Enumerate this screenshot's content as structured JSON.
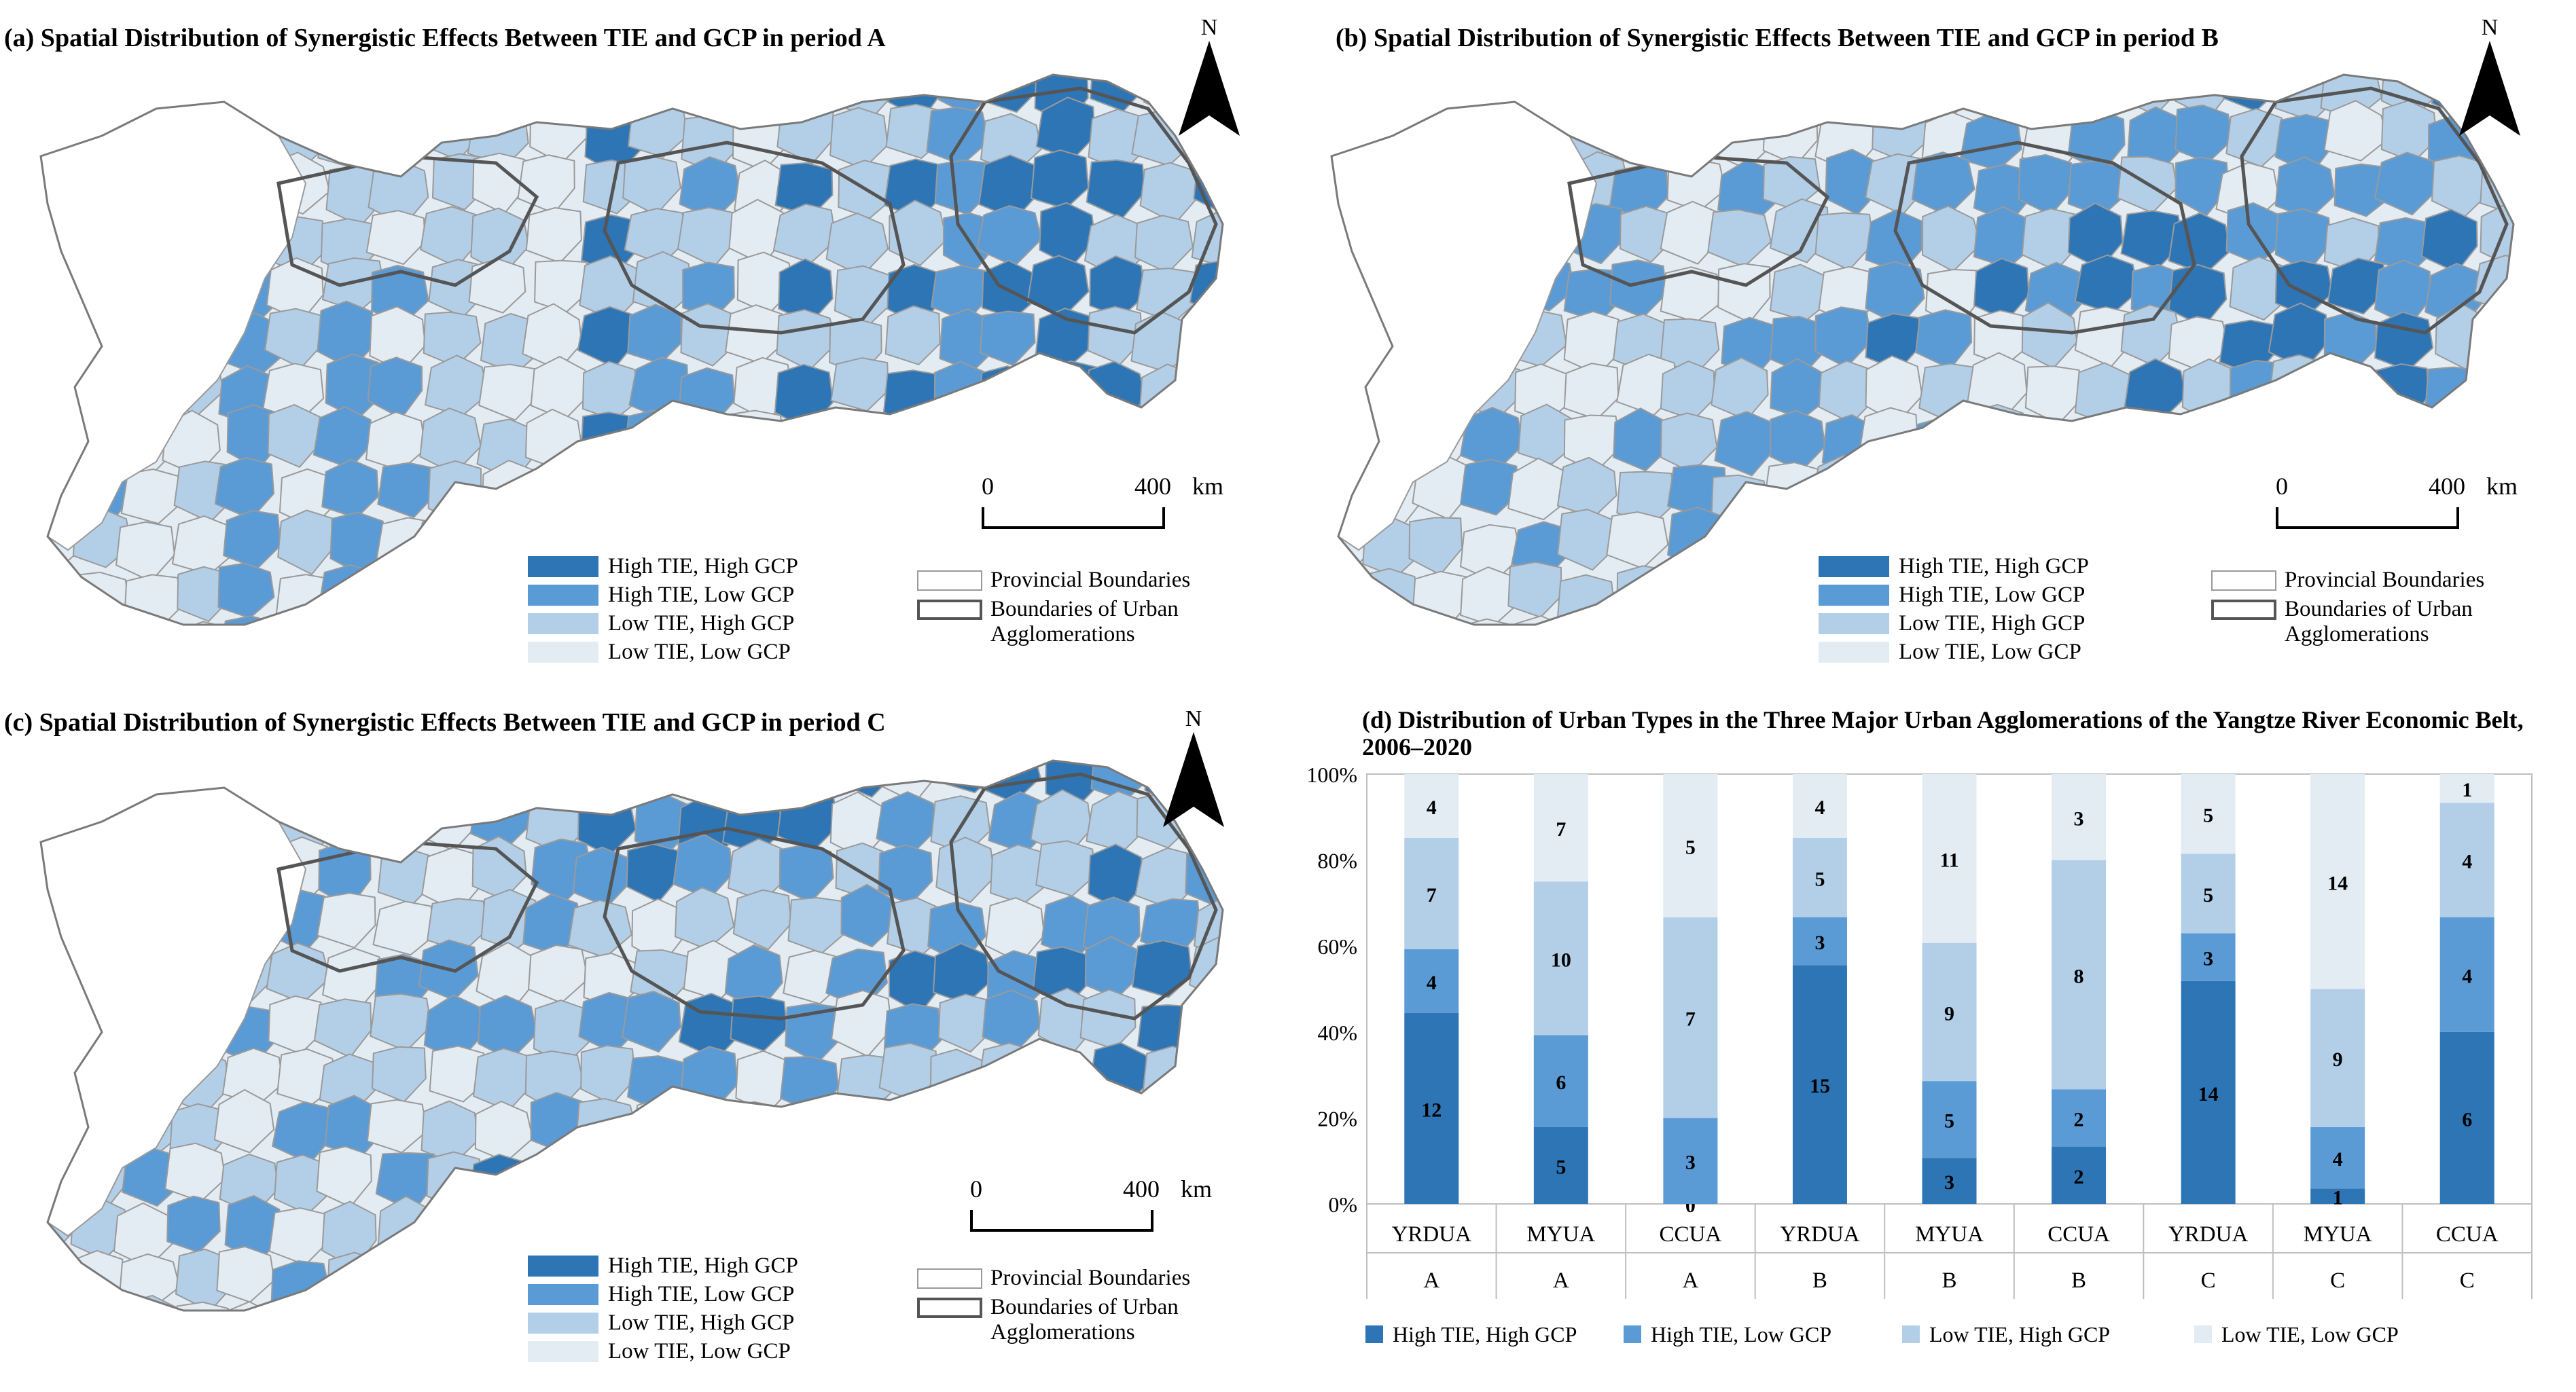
{
  "colors": {
    "high_high": "#2e75b6",
    "high_low": "#5b9bd5",
    "low_high": "#b3cfe8",
    "low_low": "#e4ecf3",
    "province_border": "#9a9a9a",
    "agglom_border": "#555555"
  },
  "maps": {
    "a": {
      "title": "(a) Spatial Distribution of Synergistic Effects Between TIE and GCP in period A"
    },
    "b": {
      "title": "(b) Spatial Distribution of Synergistic Effects Between TIE and GCP in period B"
    },
    "c": {
      "title": "(c) Spatial Distribution of Synergistic Effects Between TIE and GCP in period C"
    }
  },
  "north_label": "N",
  "scale_bar": {
    "start": "0",
    "end": "400",
    "unit": "km"
  },
  "legend": {
    "high_high": "High TIE, High GCP",
    "high_low": "High TIE, Low GCP",
    "low_high": "Low TIE, High GCP",
    "low_low": "Low TIE, Low GCP",
    "provincial": "Provincial Boundaries",
    "agglom_line1": "Boundaries of Urban",
    "agglom_line2": "Agglomerations"
  },
  "chart_data": {
    "type": "bar",
    "stacked": true,
    "percent": true,
    "title": "(d) Distribution of Urban Types in the Three Major Urban Agglomerations of the Yangtze River Economic Belt, 2006–2020",
    "categories": [
      "YRDUA",
      "MYUA",
      "CCUA",
      "YRDUA",
      "MYUA",
      "CCUA",
      "YRDUA",
      "MYUA",
      "CCUA"
    ],
    "periods": [
      "A",
      "A",
      "A",
      "B",
      "B",
      "B",
      "C",
      "C",
      "C"
    ],
    "series": [
      {
        "name": "High TIE, High GCP",
        "values": [
          12,
          5,
          0,
          15,
          3,
          2,
          14,
          1,
          6
        ]
      },
      {
        "name": "High TIE, Low GCP",
        "values": [
          4,
          6,
          3,
          3,
          5,
          2,
          3,
          4,
          4
        ]
      },
      {
        "name": "Low TIE, High GCP",
        "values": [
          7,
          10,
          7,
          5,
          9,
          8,
          5,
          9,
          4
        ]
      },
      {
        "name": "Low TIE, Low GCP",
        "values": [
          4,
          7,
          5,
          4,
          11,
          3,
          5,
          14,
          1
        ]
      }
    ],
    "y_ticks": [
      "0%",
      "20%",
      "40%",
      "60%",
      "80%",
      "100%"
    ],
    "ylim": [
      0,
      100
    ],
    "legend_position": "bottom"
  }
}
